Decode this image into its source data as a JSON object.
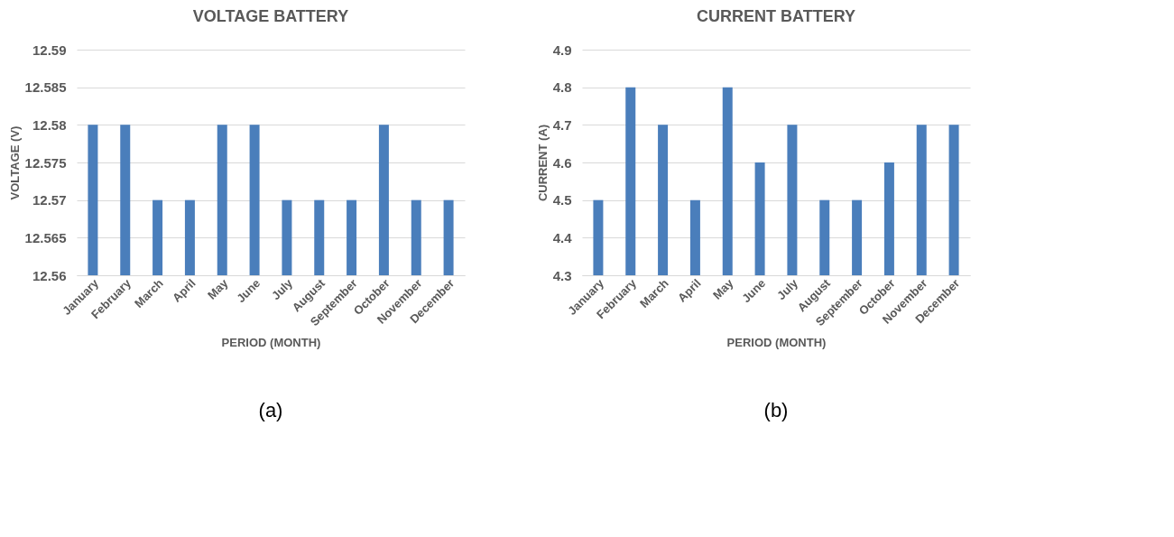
{
  "chart_data": [
    {
      "type": "bar",
      "title": "VOLTAGE BATTERY",
      "xlabel": "PERIOD (MONTH)",
      "ylabel": "VOLTAGE (V)",
      "categories": [
        "January",
        "February",
        "March",
        "April",
        "May",
        "June",
        "July",
        "August",
        "September",
        "October",
        "November",
        "December"
      ],
      "values": [
        12.58,
        12.58,
        12.57,
        12.57,
        12.58,
        12.58,
        12.57,
        12.57,
        12.57,
        12.58,
        12.57,
        12.57
      ],
      "color": "#4a7ebb",
      "ylim": [
        12.56,
        12.59
      ],
      "yticks": [
        12.56,
        12.565,
        12.57,
        12.575,
        12.58,
        12.585,
        12.59
      ],
      "grid": "y",
      "annotations": [
        "(a)"
      ]
    },
    {
      "type": "bar",
      "title": "CURRENT BATTERY",
      "xlabel": "PERIOD (MONTH)",
      "ylabel": "CURRENT (A)",
      "categories": [
        "January",
        "February",
        "March",
        "April",
        "May",
        "June",
        "July",
        "August",
        "September",
        "October",
        "November",
        "December"
      ],
      "values": [
        4.5,
        4.8,
        4.7,
        4.5,
        4.8,
        4.6,
        4.7,
        4.5,
        4.5,
        4.6,
        4.7,
        4.7
      ],
      "color": "#4a7ebb",
      "ylim": [
        4.3,
        4.9
      ],
      "yticks": [
        4.3,
        4.4,
        4.5,
        4.6,
        4.7,
        4.8,
        4.9
      ],
      "grid": "y",
      "annotations": [
        "(b)"
      ]
    }
  ]
}
